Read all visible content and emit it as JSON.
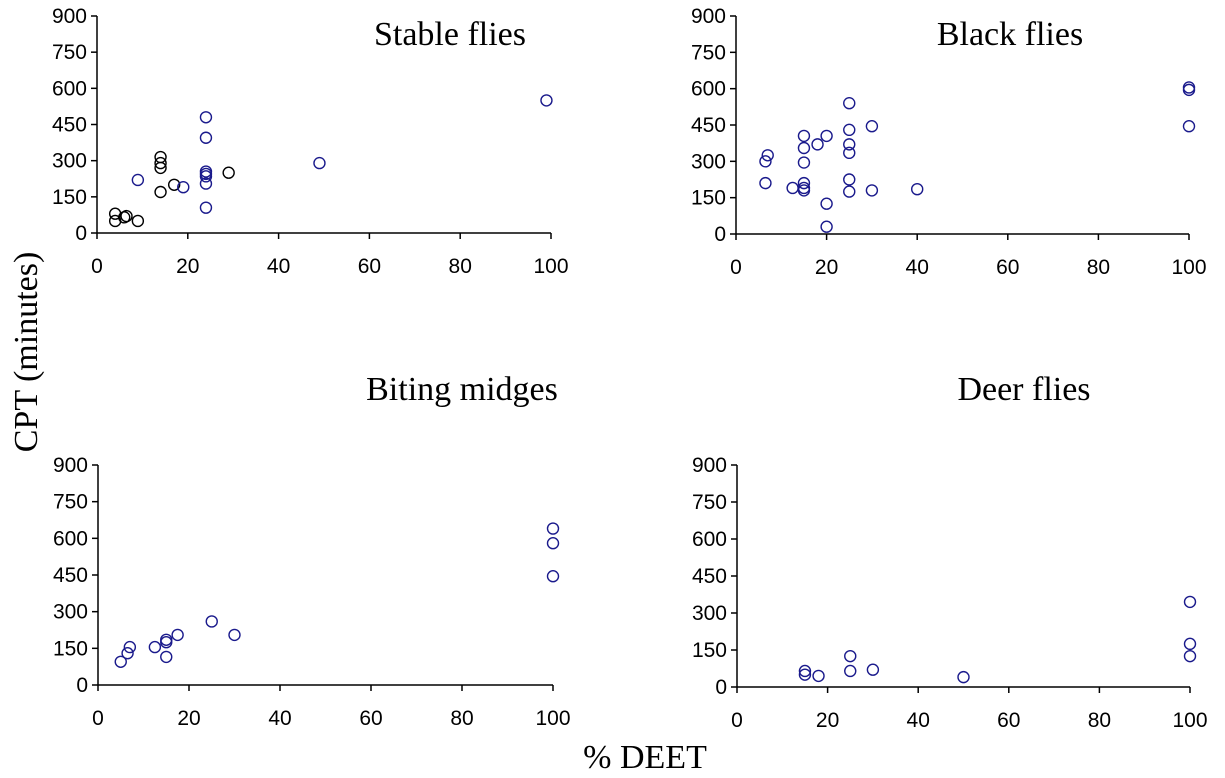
{
  "figure": {
    "ylabel": "CPT (minutes)",
    "xlabel": "% DEET"
  },
  "colors": {
    "marker_blue": "#1a1a8c",
    "marker_black": "#000000",
    "axis": "#000000"
  },
  "chart_data": [
    {
      "type": "scatter",
      "title": "Stable flies",
      "xlim": [
        0,
        100
      ],
      "ylim": [
        0,
        900
      ],
      "xticks": [
        0,
        20,
        40,
        60,
        80,
        100
      ],
      "yticks": [
        0,
        150,
        300,
        450,
        600,
        750,
        900
      ],
      "series": [
        {
          "marker_color": "black",
          "points": [
            {
              "x": 4,
              "y": 80
            },
            {
              "x": 4,
              "y": 50
            },
            {
              "x": 6,
              "y": 65
            },
            {
              "x": 6.5,
              "y": 70
            },
            {
              "x": 9,
              "y": 50
            },
            {
              "x": 14,
              "y": 315
            },
            {
              "x": 14,
              "y": 290
            },
            {
              "x": 14,
              "y": 270
            },
            {
              "x": 14,
              "y": 170
            },
            {
              "x": 17,
              "y": 200
            },
            {
              "x": 29,
              "y": 250
            }
          ]
        },
        {
          "marker_color": "blue",
          "points": [
            {
              "x": 9,
              "y": 220
            },
            {
              "x": 19,
              "y": 190
            },
            {
              "x": 24,
              "y": 480
            },
            {
              "x": 24,
              "y": 395
            },
            {
              "x": 24,
              "y": 255
            },
            {
              "x": 24,
              "y": 245
            },
            {
              "x": 24,
              "y": 235
            },
            {
              "x": 24,
              "y": 205
            },
            {
              "x": 24,
              "y": 105
            },
            {
              "x": 49,
              "y": 290
            },
            {
              "x": 99,
              "y": 550
            }
          ]
        }
      ]
    },
    {
      "type": "scatter",
      "title": "Black flies",
      "xlim": [
        0,
        100
      ],
      "ylim": [
        0,
        900
      ],
      "xticks": [
        0,
        20,
        40,
        60,
        80,
        100
      ],
      "yticks": [
        0,
        150,
        300,
        450,
        600,
        750,
        900
      ],
      "series": [
        {
          "marker_color": "blue",
          "points": [
            {
              "x": 6.5,
              "y": 300
            },
            {
              "x": 7,
              "y": 325
            },
            {
              "x": 6.5,
              "y": 210
            },
            {
              "x": 12.5,
              "y": 190
            },
            {
              "x": 15,
              "y": 405
            },
            {
              "x": 15,
              "y": 355
            },
            {
              "x": 15,
              "y": 295
            },
            {
              "x": 15,
              "y": 210
            },
            {
              "x": 15,
              "y": 190
            },
            {
              "x": 15,
              "y": 180
            },
            {
              "x": 18,
              "y": 370
            },
            {
              "x": 20,
              "y": 405
            },
            {
              "x": 20,
              "y": 125
            },
            {
              "x": 20,
              "y": 30
            },
            {
              "x": 25,
              "y": 540
            },
            {
              "x": 25,
              "y": 430
            },
            {
              "x": 25,
              "y": 370
            },
            {
              "x": 25,
              "y": 335
            },
            {
              "x": 25,
              "y": 225
            },
            {
              "x": 25,
              "y": 175
            },
            {
              "x": 30,
              "y": 445
            },
            {
              "x": 30,
              "y": 180
            },
            {
              "x": 40,
              "y": 185
            },
            {
              "x": 100,
              "y": 605
            },
            {
              "x": 100,
              "y": 595
            },
            {
              "x": 100,
              "y": 445
            }
          ]
        }
      ]
    },
    {
      "type": "scatter",
      "title": "Biting midges",
      "xlim": [
        0,
        100
      ],
      "ylim": [
        0,
        900
      ],
      "xticks": [
        0,
        20,
        40,
        60,
        80,
        100
      ],
      "yticks": [
        0,
        150,
        300,
        450,
        600,
        750,
        900
      ],
      "series": [
        {
          "marker_color": "blue",
          "points": [
            {
              "x": 5,
              "y": 95
            },
            {
              "x": 6.5,
              "y": 130
            },
            {
              "x": 7,
              "y": 155
            },
            {
              "x": 12.5,
              "y": 155
            },
            {
              "x": 15,
              "y": 185
            },
            {
              "x": 15,
              "y": 175
            },
            {
              "x": 15,
              "y": 115
            },
            {
              "x": 17.5,
              "y": 205
            },
            {
              "x": 25,
              "y": 260
            },
            {
              "x": 30,
              "y": 205
            },
            {
              "x": 100,
              "y": 640
            },
            {
              "x": 100,
              "y": 580
            },
            {
              "x": 100,
              "y": 445
            }
          ]
        }
      ]
    },
    {
      "type": "scatter",
      "title": "Deer flies",
      "xlim": [
        0,
        100
      ],
      "ylim": [
        0,
        900
      ],
      "xticks": [
        0,
        20,
        40,
        60,
        80,
        100
      ],
      "yticks": [
        0,
        150,
        300,
        450,
        600,
        750,
        900
      ],
      "series": [
        {
          "marker_color": "blue",
          "points": [
            {
              "x": 15,
              "y": 65
            },
            {
              "x": 15,
              "y": 50
            },
            {
              "x": 18,
              "y": 45
            },
            {
              "x": 25,
              "y": 125
            },
            {
              "x": 25,
              "y": 65
            },
            {
              "x": 30,
              "y": 70
            },
            {
              "x": 50,
              "y": 40
            },
            {
              "x": 100,
              "y": 345
            },
            {
              "x": 100,
              "y": 175
            },
            {
              "x": 100,
              "y": 125
            }
          ]
        }
      ]
    }
  ]
}
